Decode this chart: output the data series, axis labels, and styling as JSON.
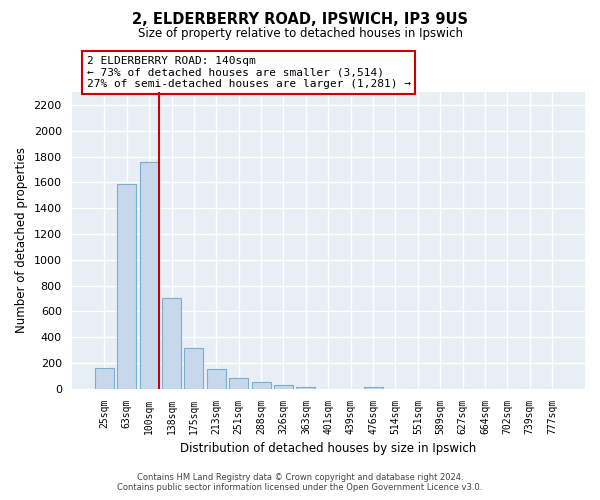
{
  "title": "2, ELDERBERRY ROAD, IPSWICH, IP3 9US",
  "subtitle": "Size of property relative to detached houses in Ipswich",
  "xlabel": "Distribution of detached houses by size in Ipswich",
  "ylabel": "Number of detached properties",
  "bar_labels": [
    "25sqm",
    "63sqm",
    "100sqm",
    "138sqm",
    "175sqm",
    "213sqm",
    "251sqm",
    "288sqm",
    "326sqm",
    "363sqm",
    "401sqm",
    "439sqm",
    "476sqm",
    "514sqm",
    "551sqm",
    "589sqm",
    "627sqm",
    "664sqm",
    "702sqm",
    "739sqm",
    "777sqm"
  ],
  "bar_values": [
    160,
    1590,
    1760,
    700,
    315,
    155,
    85,
    50,
    25,
    15,
    0,
    0,
    15,
    0,
    0,
    0,
    0,
    0,
    0,
    0,
    0
  ],
  "bar_color": "#c8d8ec",
  "bar_edge_color": "#7aaed0",
  "highlight_line_color": "#cc0000",
  "highlight_bar_index": 2,
  "ylim": [
    0,
    2300
  ],
  "yticks": [
    0,
    200,
    400,
    600,
    800,
    1000,
    1200,
    1400,
    1600,
    1800,
    2000,
    2200
  ],
  "annotation_title": "2 ELDERBERRY ROAD: 140sqm",
  "annotation_line1": "← 73% of detached houses are smaller (3,514)",
  "annotation_line2": "27% of semi-detached houses are larger (1,281) →",
  "footer_line1": "Contains HM Land Registry data © Crown copyright and database right 2024.",
  "footer_line2": "Contains public sector information licensed under the Open Government Licence v3.0.",
  "bg_color": "#ffffff",
  "plot_bg_color": "#e8eef5",
  "grid_color": "#ffffff",
  "annotation_box_bg": "#ffffff",
  "annotation_box_edge": "#cc0000"
}
